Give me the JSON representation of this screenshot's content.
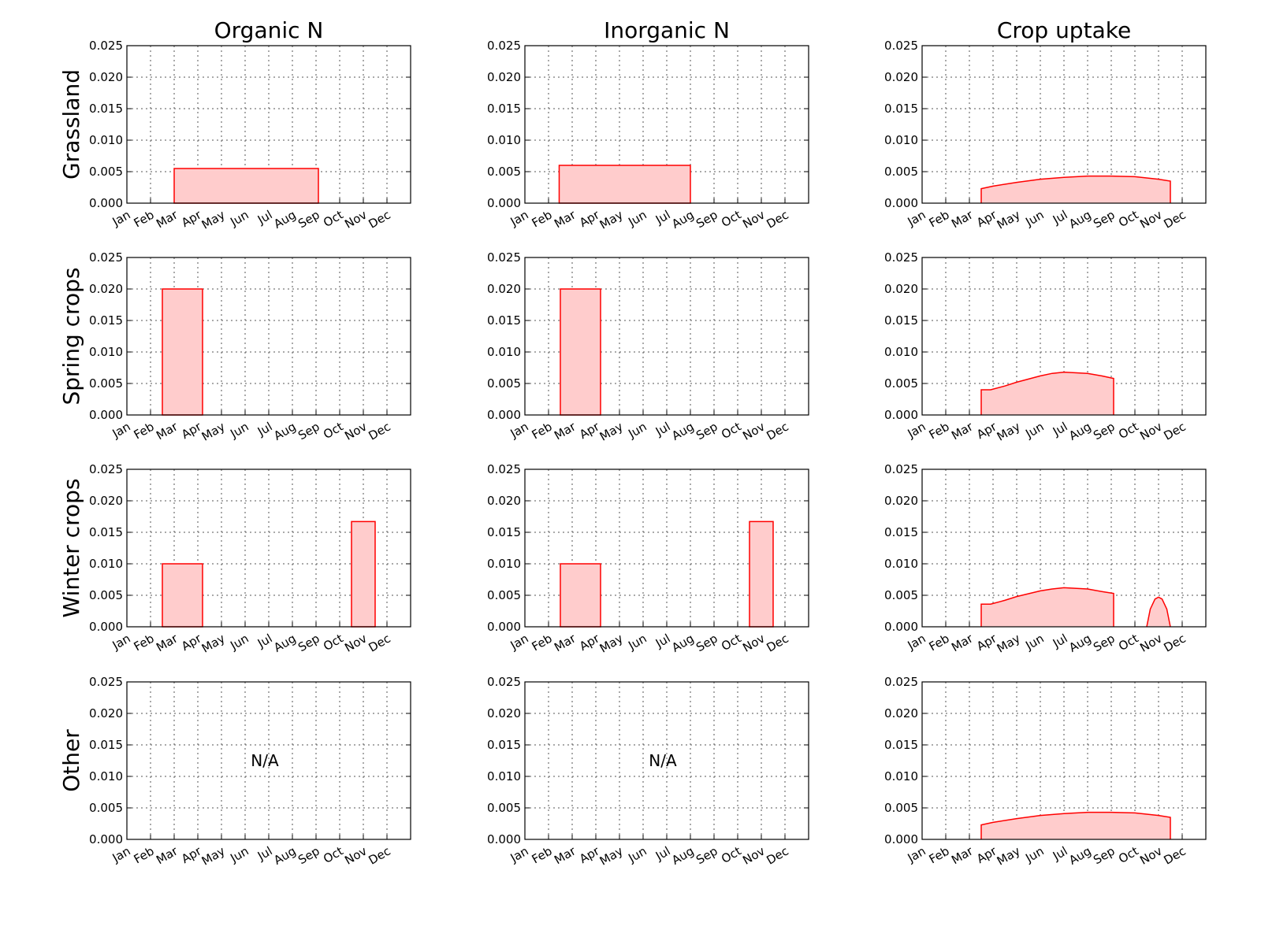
{
  "column_titles": [
    "Organic N",
    "Inorganic N",
    "Crop uptake"
  ],
  "row_titles": [
    "Grassland",
    "Spring crops",
    "Winter crops",
    "Other"
  ],
  "na_text": "N/A",
  "colors": {
    "fill": "#ffcccc",
    "line": "#ff0000"
  },
  "chart_data": {
    "type": "area",
    "layout": "grid 4 rows x 3 columns",
    "months": [
      "Jan",
      "Feb",
      "Mar",
      "Apr",
      "May",
      "Jun",
      "Jul",
      "Aug",
      "Sep",
      "Oct",
      "Nov",
      "Dec"
    ],
    "y_ticks": [
      "0.000",
      "0.005",
      "0.010",
      "0.015",
      "0.020",
      "0.025"
    ],
    "ylim": [
      0,
      0.025
    ],
    "xlim": [
      0,
      12
    ],
    "grid": true,
    "panels": [
      {
        "row": "Grassland",
        "column": "Organic N",
        "shape": "step",
        "segments": [
          {
            "x_start": 2.0,
            "x_end": 8.1,
            "value": 0.0055
          }
        ]
      },
      {
        "row": "Grassland",
        "column": "Inorganic N",
        "shape": "step",
        "segments": [
          {
            "x_start": 1.45,
            "x_end": 7.0,
            "value": 0.006
          }
        ]
      },
      {
        "row": "Grassland",
        "column": "Crop uptake",
        "shape": "curve",
        "x": [
          2.5,
          3.0,
          4.0,
          5.0,
          6.0,
          7.0,
          8.0,
          9.0,
          10.0,
          10.5
        ],
        "y": [
          0.0023,
          0.0027,
          0.0033,
          0.0038,
          0.0041,
          0.0043,
          0.0043,
          0.0042,
          0.0038,
          0.0035
        ]
      },
      {
        "row": "Spring crops",
        "column": "Organic N",
        "shape": "step",
        "segments": [
          {
            "x_start": 1.5,
            "x_end": 3.2,
            "value": 0.02
          }
        ]
      },
      {
        "row": "Spring crops",
        "column": "Inorganic N",
        "shape": "step",
        "segments": [
          {
            "x_start": 1.5,
            "x_end": 3.2,
            "value": 0.02
          }
        ]
      },
      {
        "row": "Spring crops",
        "column": "Crop uptake",
        "shape": "curve",
        "x": [
          2.5,
          2.9,
          3.5,
          4.0,
          5.0,
          5.5,
          6.0,
          7.0,
          7.6,
          8.1
        ],
        "y": [
          0.004,
          0.004,
          0.0046,
          0.0052,
          0.0062,
          0.0066,
          0.0068,
          0.0066,
          0.0062,
          0.0058
        ]
      },
      {
        "row": "Winter crops",
        "column": "Organic N",
        "shape": "step",
        "segments": [
          {
            "x_start": 1.5,
            "x_end": 3.2,
            "value": 0.01
          },
          {
            "x_start": 9.5,
            "x_end": 10.5,
            "value": 0.0167
          }
        ]
      },
      {
        "row": "Winter crops",
        "column": "Inorganic N",
        "shape": "step",
        "segments": [
          {
            "x_start": 1.5,
            "x_end": 3.2,
            "value": 0.01
          },
          {
            "x_start": 9.5,
            "x_end": 10.5,
            "value": 0.0167
          }
        ]
      },
      {
        "row": "Winter crops",
        "column": "Crop uptake",
        "shape": "curve",
        "x": [
          2.5,
          2.9,
          3.5,
          4.0,
          5.0,
          5.5,
          6.0,
          7.0,
          7.6,
          8.1
        ],
        "y": [
          0.0036,
          0.0036,
          0.0042,
          0.0048,
          0.0057,
          0.006,
          0.0062,
          0.006,
          0.0056,
          0.0053
        ]
      },
      {
        "row": "Winter crops",
        "column": "Crop uptake",
        "shape": "curve",
        "x": [
          9.5,
          9.65,
          9.85,
          10.0,
          10.15,
          10.35,
          10.5
        ],
        "y": [
          0.0,
          0.0028,
          0.0044,
          0.0047,
          0.0044,
          0.0028,
          0.0
        ]
      },
      {
        "row": "Other",
        "column": "Organic N",
        "shape": "none",
        "note": "N/A"
      },
      {
        "row": "Other",
        "column": "Inorganic N",
        "shape": "none",
        "note": "N/A"
      },
      {
        "row": "Other",
        "column": "Crop uptake",
        "shape": "curve",
        "x": [
          2.5,
          3.0,
          4.0,
          5.0,
          6.0,
          7.0,
          8.0,
          9.0,
          10.0,
          10.5
        ],
        "y": [
          0.0023,
          0.0027,
          0.0033,
          0.0038,
          0.0041,
          0.0043,
          0.0043,
          0.0042,
          0.0038,
          0.0035
        ]
      }
    ]
  }
}
